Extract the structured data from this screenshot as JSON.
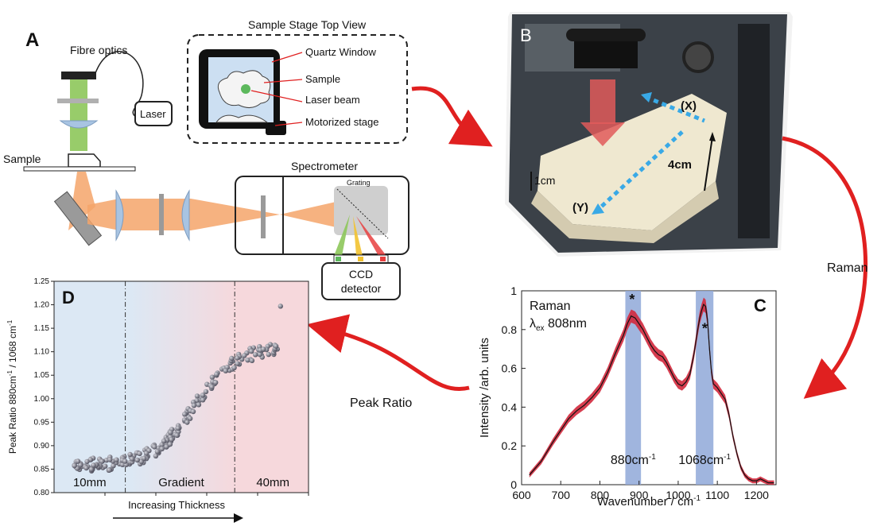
{
  "panel_a": {
    "letter": "A",
    "fibre_label": "Fibre optics",
    "laser_label": "Laser",
    "sample_label": "Sample",
    "stage_title": "Sample Stage Top View",
    "stage_labels": [
      "Quartz Window",
      "Sample",
      "Laser beam",
      "Motorized stage"
    ],
    "spectrometer_label": "Spectrometer",
    "grating_label": "Grating",
    "ccd_line1": "CCD",
    "ccd_line2": "detector"
  },
  "panel_b": {
    "letter": "B",
    "x_label": "(X)",
    "y_label": "(Y)",
    "scale_1cm": "1cm",
    "scale_4cm": "4cm"
  },
  "flow": {
    "raman_label": "Raman",
    "peak_ratio_label": "Peak Ratio"
  },
  "colors": {
    "arrow_red": "#e02020",
    "band_blue": "#8fa8d8",
    "spectrum_red": "#d2283c",
    "beam_orange": "#f4a46a",
    "beam_green": "#8dc65a",
    "region_blue": "#dce8f4",
    "region_pink": "#f6d8dc"
  },
  "chart_data": [
    {
      "panel": "C",
      "type": "line",
      "title_line1": "Raman",
      "title_line2_prefix": "λ",
      "title_line2_sub": "ex",
      "title_line2_suffix": " 808nm",
      "xlabel": "Wavenumber / cm",
      "xlabel_sup": "-1",
      "ylabel": "Intensity /arb. units",
      "xlim": [
        600,
        1250
      ],
      "ylim": [
        0,
        1
      ],
      "xticks": [
        600,
        700,
        800,
        900,
        1000,
        1100,
        1200
      ],
      "yticks": [
        0,
        0.2,
        0.4,
        0.6,
        0.8,
        1
      ],
      "ytick_labels": [
        "0",
        "0.2",
        "0.4",
        "0.6",
        "0.8",
        "1"
      ],
      "bands": [
        {
          "from": 865,
          "to": 905,
          "label": "880cm",
          "label_sup": "-1"
        },
        {
          "from": 1045,
          "to": 1090,
          "label": "1068cm",
          "label_sup": "-1"
        }
      ],
      "markers": [
        {
          "x": 882,
          "y": 0.93,
          "text": "*"
        },
        {
          "x": 1068,
          "y": 0.78,
          "text": "*"
        }
      ],
      "series": [
        {
          "x": [
            620,
            650,
            680,
            700,
            720,
            740,
            760,
            780,
            800,
            820,
            840,
            860,
            870,
            880,
            890,
            900,
            910,
            920,
            930,
            940,
            950,
            960,
            970,
            980,
            990,
            1000,
            1010,
            1020,
            1030,
            1040,
            1050,
            1055,
            1060,
            1065,
            1070,
            1075,
            1080,
            1085,
            1090,
            1100,
            1110,
            1120,
            1130,
            1140,
            1150,
            1160,
            1170,
            1180,
            1190,
            1200,
            1210,
            1220,
            1230,
            1245
          ],
          "y": [
            0.05,
            0.12,
            0.22,
            0.28,
            0.34,
            0.38,
            0.41,
            0.45,
            0.5,
            0.58,
            0.68,
            0.77,
            0.83,
            0.87,
            0.86,
            0.83,
            0.8,
            0.76,
            0.72,
            0.69,
            0.67,
            0.66,
            0.63,
            0.59,
            0.55,
            0.52,
            0.51,
            0.53,
            0.57,
            0.67,
            0.8,
            0.86,
            0.9,
            0.93,
            0.92,
            0.85,
            0.7,
            0.58,
            0.52,
            0.5,
            0.47,
            0.44,
            0.36,
            0.25,
            0.16,
            0.09,
            0.05,
            0.03,
            0.02,
            0.02,
            0.03,
            0.02,
            0.01,
            0.01
          ]
        }
      ]
    },
    {
      "panel": "D",
      "type": "scatter",
      "xlabel": "Increasing Thickness",
      "ylabel": "Peak Ratio 880cm",
      "ylabel_sup1": "-1",
      "ylabel_mid": " / 1068 cm",
      "ylabel_sup2": "-1",
      "xlim": [
        0,
        100
      ],
      "ylim": [
        0.8,
        1.25
      ],
      "yticks": [
        0.8,
        0.85,
        0.9,
        0.95,
        1.0,
        1.05,
        1.1,
        1.15,
        1.2,
        1.25
      ],
      "ytick_labels": [
        "0.80",
        "0.85",
        "0.90",
        "0.95",
        "1.00",
        "1.05",
        "1.10",
        "1.15",
        "1.20",
        "1.25"
      ],
      "dividers": [
        28,
        71
      ],
      "regions": [
        "10mm",
        "Gradient",
        "40mm"
      ]
    }
  ]
}
